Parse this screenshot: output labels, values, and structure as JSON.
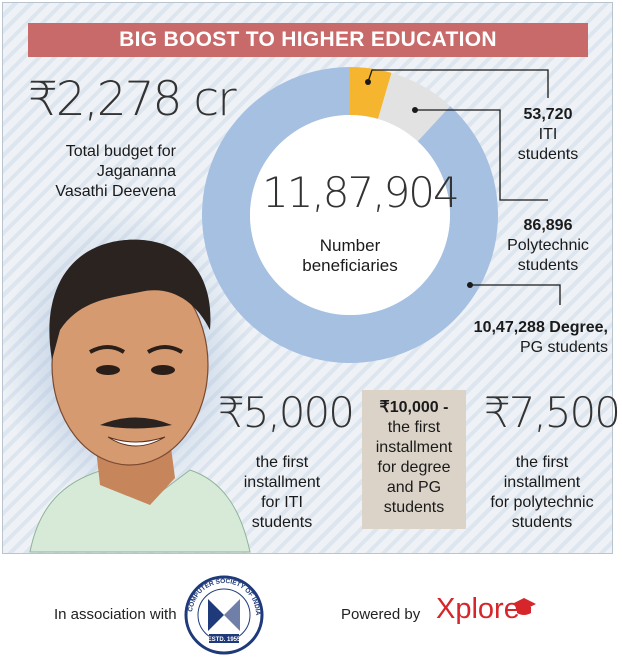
{
  "title": "BIG BOOST TO HIGHER EDUCATION",
  "budget": {
    "value": "₹2,278 cr",
    "lines": [
      "Total budget for",
      "Jagananna",
      "Vasathi Deevena"
    ]
  },
  "center": {
    "value": "11,87,904",
    "lines": [
      "Number",
      "beneficiaries"
    ]
  },
  "labels": {
    "iti": [
      "53,720",
      "ITI",
      "students"
    ],
    "poly": [
      "86,896",
      "Polytechnic",
      "students"
    ],
    "degree": [
      "10,47,288 Degree,",
      "PG students"
    ]
  },
  "installments": {
    "iti": {
      "value": "₹5,000",
      "lines": [
        "the first",
        "installment",
        "for ITI",
        "students"
      ]
    },
    "degree": {
      "value": "₹10,000 -",
      "lines": [
        "the first",
        "installment",
        "for degree",
        "and PG",
        "students"
      ]
    },
    "poly": {
      "value": "₹7,500",
      "lines": [
        "the first",
        "installment",
        "for polytechnic",
        "students"
      ]
    }
  },
  "footer": {
    "association": "In association with",
    "csi_top": "COMPUTER SOCIETY OF INDIA",
    "csi_est": "ESTD. 1955",
    "powered": "Powered by",
    "brand": "Xplore"
  },
  "chart_data": {
    "type": "pie",
    "title": "BIG BOOST TO HIGHER EDUCATION",
    "total": 1187904,
    "series": [
      {
        "name": "ITI students",
        "value": 53720,
        "color": "#f5b52e"
      },
      {
        "name": "Polytechnic students",
        "value": 86896,
        "color": "#e2e2e2"
      },
      {
        "name": "Degree, PG students",
        "value": 1047288,
        "color": "#a6c0e2"
      }
    ]
  },
  "colors": {
    "title_bg": "#c96a6a",
    "donut_center": "#ffffff",
    "box": "#dbd3c8",
    "brand_red": "#d7262b"
  }
}
